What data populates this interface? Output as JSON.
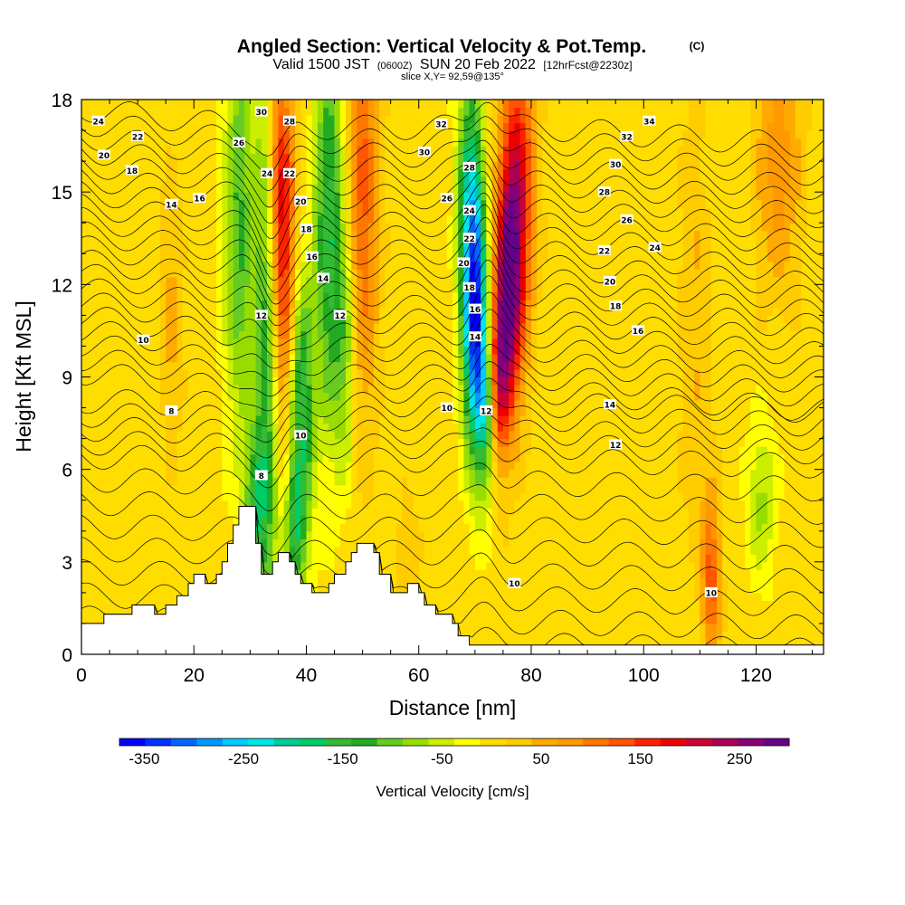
{
  "chart_data": {
    "type": "heatmap",
    "title": "Angled Section: Vertical Velocity & Pot.Temp.",
    "title_mark": "(C)",
    "subtitle_parts": [
      "Valid 1500 JST",
      "(0600Z)",
      "SUN 20 Feb 2022",
      "[12hrFcst@2230z]"
    ],
    "slice_note": "slice X,Y= 92,59@135°",
    "xlabel": "Distance [nm]",
    "ylabel": "Height [Kft MSL]",
    "xlim": [
      0,
      132
    ],
    "ylim": [
      0,
      18
    ],
    "x_ticks": [
      0,
      20,
      40,
      60,
      80,
      100,
      120
    ],
    "y_ticks": [
      0,
      3,
      6,
      9,
      12,
      15,
      18
    ],
    "colorbar": {
      "title": "Vertical Velocity [cm/s]",
      "ticks": [
        -350,
        -250,
        -150,
        -50,
        50,
        150,
        250
      ],
      "range": [
        -375,
        300
      ],
      "colors": [
        "#0000ff",
        "#0033ff",
        "#0066ff",
        "#0099ff",
        "#00ccff",
        "#00e6e6",
        "#00cc99",
        "#00cc66",
        "#33bb33",
        "#22aa22",
        "#66cc22",
        "#99dd00",
        "#ccee00",
        "#ffff00",
        "#ffdd00",
        "#ffcc00",
        "#ffaa00",
        "#ff9900",
        "#ff7700",
        "#ff5500",
        "#ff2200",
        "#ee0000",
        "#cc0033",
        "#aa0055",
        "#880077",
        "#660088"
      ]
    },
    "terrain_kft": [
      [
        0,
        1.0
      ],
      [
        4,
        1.0
      ],
      [
        4,
        1.3
      ],
      [
        9,
        1.3
      ],
      [
        9,
        1.6
      ],
      [
        13,
        1.6
      ],
      [
        13,
        1.3
      ],
      [
        15,
        1.3
      ],
      [
        15,
        1.6
      ],
      [
        17,
        1.6
      ],
      [
        17,
        1.9
      ],
      [
        19,
        1.9
      ],
      [
        19,
        2.3
      ],
      [
        20,
        2.3
      ],
      [
        20,
        2.6
      ],
      [
        22,
        2.6
      ],
      [
        22,
        2.3
      ],
      [
        24,
        2.3
      ],
      [
        24,
        2.6
      ],
      [
        25,
        2.6
      ],
      [
        25,
        3.0
      ],
      [
        26,
        3.0
      ],
      [
        26,
        3.6
      ],
      [
        27,
        3.6
      ],
      [
        27,
        4.2
      ],
      [
        28,
        4.2
      ],
      [
        28,
        4.8
      ],
      [
        31,
        4.8
      ],
      [
        31,
        3.6
      ],
      [
        32,
        3.6
      ],
      [
        32,
        2.6
      ],
      [
        34,
        2.6
      ],
      [
        34,
        3.0
      ],
      [
        35,
        3.0
      ],
      [
        35,
        3.3
      ],
      [
        37,
        3.3
      ],
      [
        37,
        3.0
      ],
      [
        38,
        3.0
      ],
      [
        38,
        2.6
      ],
      [
        39,
        2.6
      ],
      [
        39,
        2.3
      ],
      [
        41,
        2.3
      ],
      [
        41,
        2.0
      ],
      [
        44,
        2.0
      ],
      [
        44,
        2.3
      ],
      [
        45,
        2.3
      ],
      [
        45,
        2.6
      ],
      [
        47,
        2.6
      ],
      [
        47,
        3.0
      ],
      [
        48,
        3.0
      ],
      [
        48,
        3.3
      ],
      [
        49,
        3.3
      ],
      [
        49,
        3.6
      ],
      [
        52,
        3.6
      ],
      [
        52,
        3.3
      ],
      [
        53,
        3.3
      ],
      [
        53,
        2.6
      ],
      [
        55,
        2.6
      ],
      [
        55,
        2.0
      ],
      [
        58,
        2.0
      ],
      [
        58,
        2.3
      ],
      [
        60,
        2.3
      ],
      [
        60,
        2.0
      ],
      [
        61,
        2.0
      ],
      [
        61,
        1.6
      ],
      [
        63,
        1.6
      ],
      [
        63,
        1.3
      ],
      [
        66,
        1.3
      ],
      [
        66,
        1.0
      ],
      [
        67,
        1.0
      ],
      [
        67,
        0.6
      ],
      [
        69,
        0.6
      ],
      [
        69,
        0.3
      ],
      [
        132,
        0.3
      ]
    ],
    "w_features": [
      {
        "x": 33,
        "z": 9.5,
        "sx": 1.6,
        "sz": 8.0,
        "w": -140
      },
      {
        "x": 31,
        "z": 5.0,
        "sx": 1.4,
        "sz": 1.5,
        "w": -120
      },
      {
        "x": 28,
        "z": 14.0,
        "sx": 1.8,
        "sz": 5.0,
        "w": -120
      },
      {
        "x": 36,
        "z": 12.0,
        "sx": 1.6,
        "sz": 4.0,
        "w": 150
      },
      {
        "x": 35,
        "z": 16.0,
        "sx": 1.6,
        "sz": 3.0,
        "w": 110
      },
      {
        "x": 39,
        "z": 8.0,
        "sx": 1.6,
        "sz": 3.0,
        "w": -180
      },
      {
        "x": 38,
        "z": 4.0,
        "sx": 1.3,
        "sz": 1.5,
        "w": -120
      },
      {
        "x": 44,
        "z": 14.0,
        "sx": 1.8,
        "sz": 4.5,
        "w": -160
      },
      {
        "x": 47,
        "z": 10.0,
        "sx": 1.5,
        "sz": 3.0,
        "w": -90
      },
      {
        "x": 50,
        "z": 15.0,
        "sx": 2.0,
        "sz": 5.0,
        "w": 130
      },
      {
        "x": 70,
        "z": 11.0,
        "sx": 1.5,
        "sz": 3.0,
        "w": -330
      },
      {
        "x": 72,
        "z": 8.0,
        "sx": 1.3,
        "sz": 2.0,
        "w": -150
      },
      {
        "x": 69,
        "z": 15.5,
        "sx": 1.5,
        "sz": 3.0,
        "w": -140
      },
      {
        "x": 76,
        "z": 12.0,
        "sx": 1.7,
        "sz": 3.0,
        "w": 260
      },
      {
        "x": 74,
        "z": 9.0,
        "sx": 1.3,
        "sz": 2.0,
        "w": 170
      },
      {
        "x": 78,
        "z": 15.5,
        "sx": 2.0,
        "sz": 3.5,
        "w": 150
      },
      {
        "x": 112,
        "z": 2.5,
        "sx": 1.2,
        "sz": 2.0,
        "w": 130
      },
      {
        "x": 121,
        "z": 5.0,
        "sx": 1.8,
        "sz": 1.8,
        "w": -70
      },
      {
        "x": 124,
        "z": 16.0,
        "sx": 3.0,
        "sz": 3.0,
        "w": 80
      },
      {
        "x": 16,
        "z": 11.0,
        "sx": 1.5,
        "sz": 3.0,
        "w": 50
      },
      {
        "x": 109,
        "z": 11.0,
        "sx": 2.0,
        "sz": 5.0,
        "w": 40
      },
      {
        "x": 58,
        "z": 3.0,
        "sx": 1.5,
        "sz": 1.5,
        "w": 40
      }
    ],
    "theta_contours": {
      "levels_c": [
        2,
        4,
        6,
        8,
        10,
        12,
        14,
        16,
        18,
        20,
        22,
        24,
        26,
        28,
        30,
        32,
        34
      ],
      "step_c": 1
    },
    "contour_labels": [
      {
        "text": "24",
        "x": 3,
        "z": 17.3
      },
      {
        "text": "22",
        "x": 10,
        "z": 16.8
      },
      {
        "text": "20",
        "x": 4,
        "z": 16.2
      },
      {
        "text": "18",
        "x": 9,
        "z": 15.7
      },
      {
        "text": "16",
        "x": 21,
        "z": 14.8
      },
      {
        "text": "14",
        "x": 16,
        "z": 14.6
      },
      {
        "text": "10",
        "x": 11,
        "z": 10.2
      },
      {
        "text": "8",
        "x": 16,
        "z": 7.9
      },
      {
        "text": "30",
        "x": 32,
        "z": 17.6
      },
      {
        "text": "28",
        "x": 37,
        "z": 17.3
      },
      {
        "text": "26",
        "x": 28,
        "z": 16.6
      },
      {
        "text": "24",
        "x": 33,
        "z": 15.6
      },
      {
        "text": "22",
        "x": 37,
        "z": 15.6
      },
      {
        "text": "20",
        "x": 39,
        "z": 14.7
      },
      {
        "text": "18",
        "x": 40,
        "z": 13.8
      },
      {
        "text": "16",
        "x": 41,
        "z": 12.9
      },
      {
        "text": "14",
        "x": 43,
        "z": 12.2
      },
      {
        "text": "12",
        "x": 32,
        "z": 11.0
      },
      {
        "text": "12",
        "x": 46,
        "z": 11.0
      },
      {
        "text": "10",
        "x": 39,
        "z": 7.1
      },
      {
        "text": "8",
        "x": 32,
        "z": 5.8
      },
      {
        "text": "32",
        "x": 64,
        "z": 17.2
      },
      {
        "text": "30",
        "x": 61,
        "z": 16.3
      },
      {
        "text": "28",
        "x": 69,
        "z": 15.8
      },
      {
        "text": "26",
        "x": 65,
        "z": 14.8
      },
      {
        "text": "24",
        "x": 69,
        "z": 14.4
      },
      {
        "text": "22",
        "x": 69,
        "z": 13.5
      },
      {
        "text": "20",
        "x": 68,
        "z": 12.7
      },
      {
        "text": "18",
        "x": 69,
        "z": 11.9
      },
      {
        "text": "16",
        "x": 70,
        "z": 11.2
      },
      {
        "text": "14",
        "x": 70,
        "z": 10.3
      },
      {
        "text": "12",
        "x": 72,
        "z": 7.9
      },
      {
        "text": "10",
        "x": 65,
        "z": 8.0
      },
      {
        "text": "34",
        "x": 101,
        "z": 17.3
      },
      {
        "text": "32",
        "x": 97,
        "z": 16.8
      },
      {
        "text": "30",
        "x": 95,
        "z": 15.9
      },
      {
        "text": "28",
        "x": 93,
        "z": 15.0
      },
      {
        "text": "26",
        "x": 97,
        "z": 14.1
      },
      {
        "text": "24",
        "x": 102,
        "z": 13.2
      },
      {
        "text": "22",
        "x": 93,
        "z": 13.1
      },
      {
        "text": "20",
        "x": 94,
        "z": 12.1
      },
      {
        "text": "18",
        "x": 95,
        "z": 11.3
      },
      {
        "text": "16",
        "x": 99,
        "z": 10.5
      },
      {
        "text": "14",
        "x": 94,
        "z": 8.1
      },
      {
        "text": "12",
        "x": 95,
        "z": 6.8
      },
      {
        "text": "10",
        "x": 77,
        "z": 2.3
      },
      {
        "text": "10",
        "x": 112,
        "z": 2.0
      }
    ]
  }
}
